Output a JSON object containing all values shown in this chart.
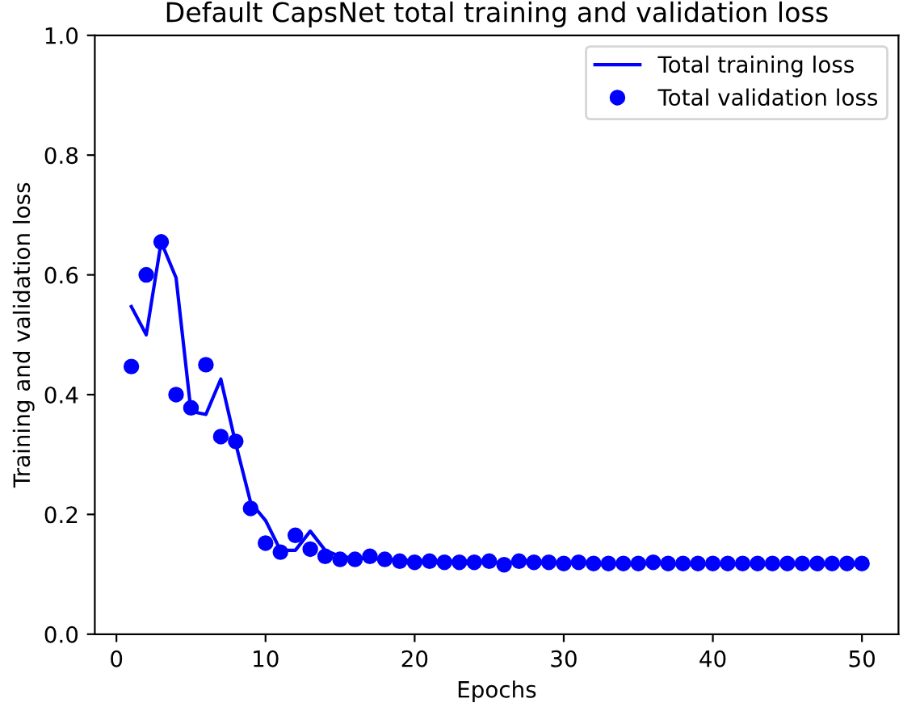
{
  "chart_data": {
    "type": "line",
    "title": "Default CapsNet total training and validation loss",
    "xlabel": "Epochs",
    "ylabel": "Training and validation loss",
    "x": [
      1,
      2,
      3,
      4,
      5,
      6,
      7,
      8,
      9,
      10,
      11,
      12,
      13,
      14,
      15,
      16,
      17,
      18,
      19,
      20,
      21,
      22,
      23,
      24,
      25,
      26,
      27,
      28,
      29,
      30,
      31,
      32,
      33,
      34,
      35,
      36,
      37,
      38,
      39,
      40,
      41,
      42,
      43,
      44,
      45,
      46,
      47,
      48,
      49,
      50
    ],
    "series": [
      {
        "name": "Total training loss",
        "color": "#0000ff",
        "marker": "none",
        "values": [
          0.547,
          0.5,
          0.655,
          0.595,
          0.372,
          0.367,
          0.426,
          0.318,
          0.22,
          0.19,
          0.14,
          0.14,
          0.172,
          0.14,
          0.13,
          0.127,
          0.126,
          0.125,
          0.124,
          0.123,
          0.122,
          0.122,
          0.121,
          0.121,
          0.12,
          0.12,
          0.12,
          0.119,
          0.119,
          0.119,
          0.119,
          0.118,
          0.118,
          0.118,
          0.118,
          0.118,
          0.118,
          0.117,
          0.117,
          0.117,
          0.117,
          0.117,
          0.117,
          0.117,
          0.117,
          0.117,
          0.117,
          0.117,
          0.117,
          0.117
        ]
      },
      {
        "name": "Total validation loss",
        "type": "scatter",
        "color": "#0000ff",
        "marker": "circle",
        "values": [
          0.447,
          0.6,
          0.655,
          0.4,
          0.378,
          0.45,
          0.33,
          0.322,
          0.21,
          0.152,
          0.137,
          0.165,
          0.142,
          0.13,
          0.125,
          0.125,
          0.13,
          0.125,
          0.122,
          0.12,
          0.122,
          0.12,
          0.12,
          0.12,
          0.122,
          0.116,
          0.122,
          0.12,
          0.12,
          0.118,
          0.12,
          0.118,
          0.118,
          0.118,
          0.118,
          0.12,
          0.118,
          0.118,
          0.118,
          0.118,
          0.118,
          0.118,
          0.118,
          0.118,
          0.118,
          0.118,
          0.118,
          0.118,
          0.118,
          0.118
        ]
      }
    ],
    "xlim": [
      -1.45,
      52.45
    ],
    "xticks": [
      0,
      10,
      20,
      30,
      40,
      50
    ],
    "ylim": [
      0,
      1
    ],
    "yticks": [
      {
        "value": 0,
        "label": "0.0"
      },
      {
        "value": 0.2,
        "label": "0.2"
      },
      {
        "value": 0.4,
        "label": "0.4"
      },
      {
        "value": 0.6,
        "label": "0.6"
      },
      {
        "value": 0.8,
        "label": "0.8"
      },
      {
        "value": 1,
        "label": "1.0"
      }
    ],
    "legend": "top right",
    "grid": false
  }
}
